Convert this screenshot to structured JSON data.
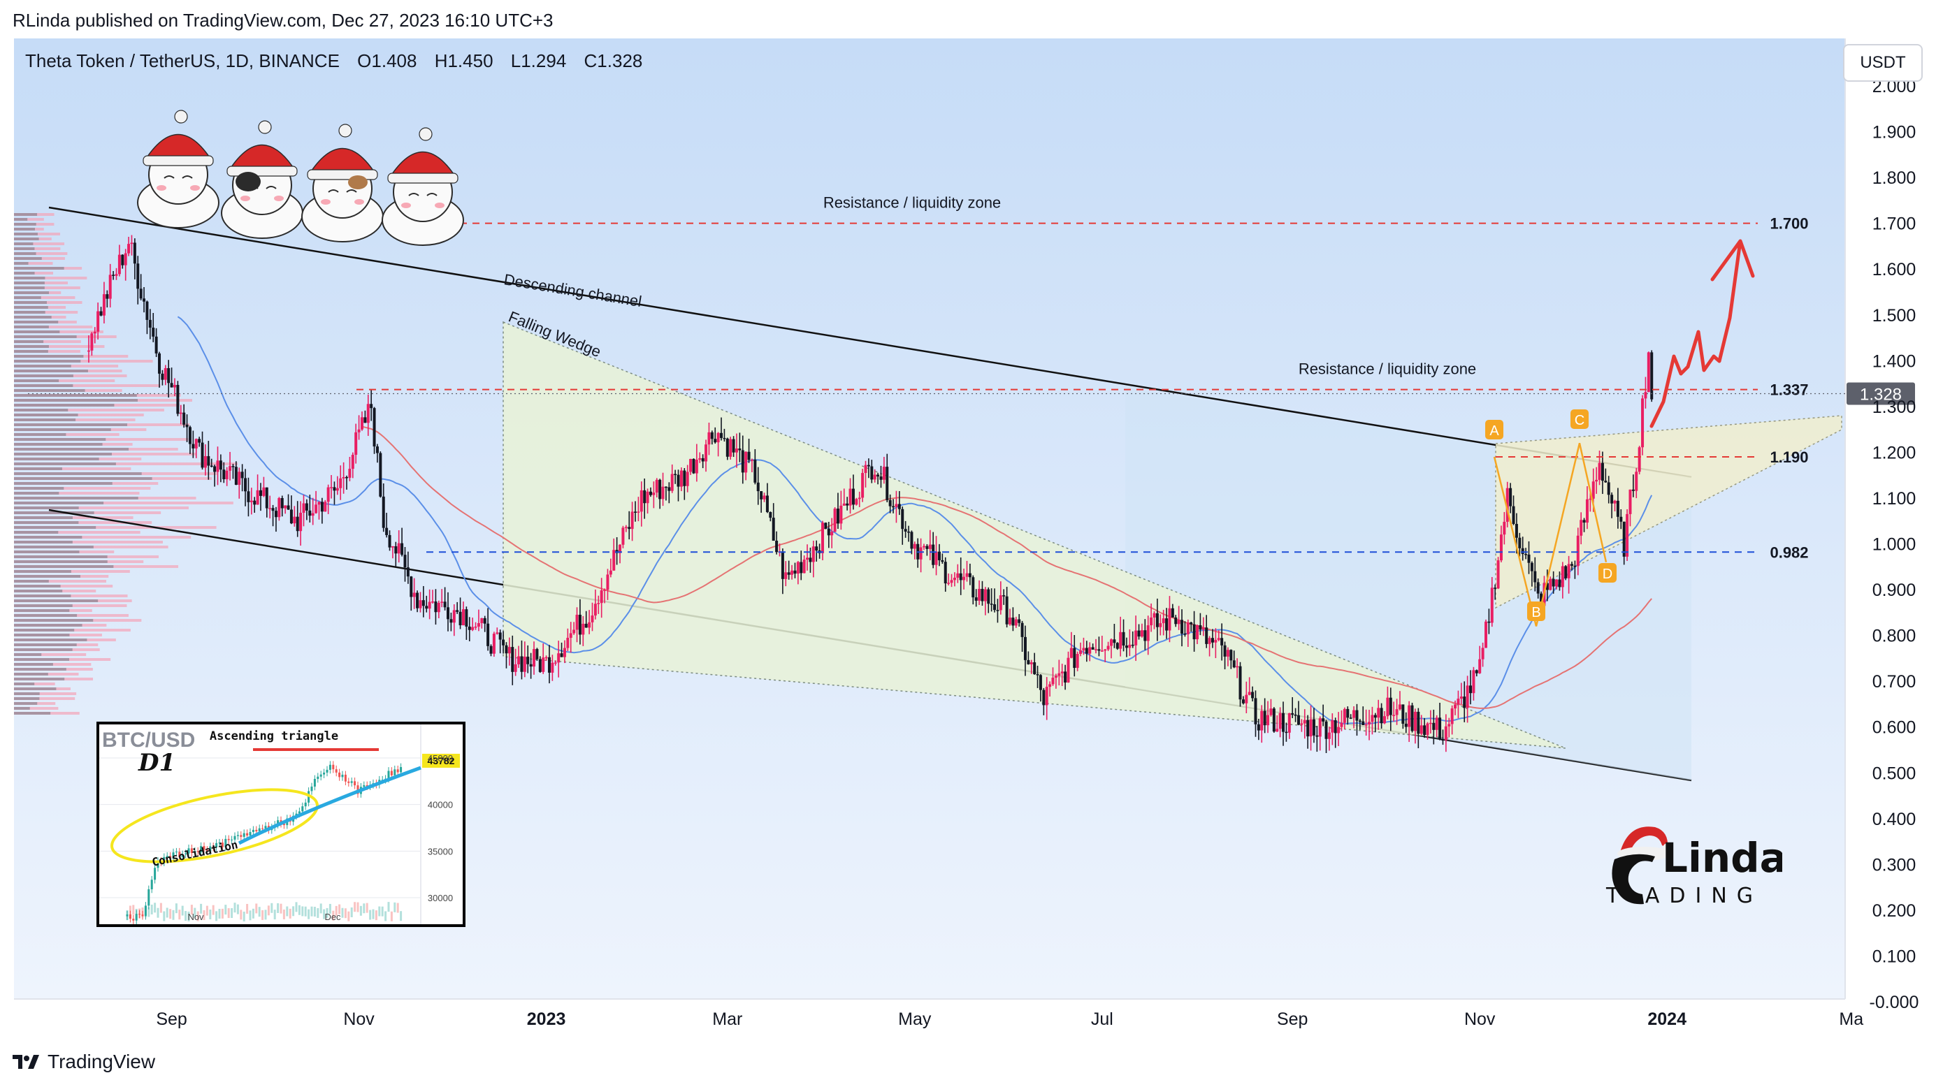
{
  "header": {
    "publisher_line": "RLinda published on TradingView.com, Dec 27, 2023 16:10 UTC+3"
  },
  "symbol": {
    "name": "Theta Token / TetherUS, 1D, BINANCE",
    "open": "O1.408",
    "high": "H1.450",
    "low": "L1.294",
    "close": "C1.328"
  },
  "unit_button": "USDT",
  "footer": {
    "brand": "TradingView"
  },
  "colors": {
    "background_top": "#c6dcf7",
    "background_bottom": "#eef4fd",
    "bull": "#131722",
    "bear": "#e91e63",
    "resistance": "#e53935",
    "support": "#1e4fd8",
    "ma_blue": "#5b8fe8",
    "ma_red": "#e57373",
    "wedge_fill": "#e9f3d8",
    "forecast": "#e53935",
    "pattern_orange": "#f5a623"
  },
  "chart_data": {
    "type": "candlestick",
    "title": "Theta Token / TetherUS, 1D, BINANCE",
    "ylim": [
      -0.05,
      2.05
    ],
    "y_ticks": [
      "2.000",
      "1.900",
      "1.800",
      "1.700",
      "1.600",
      "1.500",
      "1.400",
      "1.300",
      "1.200",
      "1.100",
      "1.000",
      "0.900",
      "0.800",
      "0.700",
      "0.600",
      "0.500",
      "0.400",
      "0.300",
      "0.200",
      "0.100",
      "-0.000"
    ],
    "x_ticks": [
      "Sep",
      "Nov",
      "2023",
      "Mar",
      "May",
      "Jul",
      "Sep",
      "Nov",
      "2024",
      "Ma"
    ],
    "x_ticks_bold": [
      "2023",
      "2024"
    ],
    "price_tag": "1.328",
    "levels": [
      {
        "label": "1.700",
        "value": 1.7,
        "style": "dashed-red",
        "caption": "Resistance / liquidity zone"
      },
      {
        "label": "1.337",
        "value": 1.337,
        "style": "dashed-red",
        "caption": "Resistance / liquidity zone"
      },
      {
        "label": "1.190",
        "value": 1.19,
        "style": "dashed-red",
        "caption": ""
      },
      {
        "label": "0.982",
        "value": 0.982,
        "style": "dashed-blue",
        "caption": ""
      }
    ],
    "annotations": [
      "Descending channel",
      "Falling Wedge"
    ],
    "pattern_points": [
      {
        "label": "A",
        "price": 1.19
      },
      {
        "label": "B",
        "price": 0.82
      },
      {
        "label": "C",
        "price": 1.22
      },
      {
        "label": "D",
        "price": 0.96
      }
    ],
    "price_path": [
      {
        "date": "2022-08-05",
        "close": 1.45
      },
      {
        "date": "2022-08-18",
        "close": 1.66
      },
      {
        "date": "2022-08-28",
        "close": 1.4
      },
      {
        "date": "2022-09-10",
        "close": 1.2
      },
      {
        "date": "2022-09-25",
        "close": 1.12
      },
      {
        "date": "2022-10-12",
        "close": 1.05
      },
      {
        "date": "2022-10-25",
        "close": 1.12
      },
      {
        "date": "2022-11-05",
        "close": 1.3
      },
      {
        "date": "2022-11-09",
        "close": 1.05
      },
      {
        "date": "2022-11-20",
        "close": 0.88
      },
      {
        "date": "2022-12-05",
        "close": 0.85
      },
      {
        "date": "2022-12-20",
        "close": 0.75
      },
      {
        "date": "2023-01-01",
        "close": 0.74
      },
      {
        "date": "2023-01-15",
        "close": 0.85
      },
      {
        "date": "2023-02-01",
        "close": 1.1
      },
      {
        "date": "2023-02-15",
        "close": 1.15
      },
      {
        "date": "2023-02-25",
        "close": 1.25
      },
      {
        "date": "2023-03-10",
        "close": 1.15
      },
      {
        "date": "2023-03-20",
        "close": 0.92
      },
      {
        "date": "2023-04-05",
        "close": 1.05
      },
      {
        "date": "2023-04-18",
        "close": 1.18
      },
      {
        "date": "2023-05-01",
        "close": 1.0
      },
      {
        "date": "2023-05-15",
        "close": 0.92
      },
      {
        "date": "2023-06-01",
        "close": 0.85
      },
      {
        "date": "2023-06-12",
        "close": 0.66
      },
      {
        "date": "2023-06-25",
        "close": 0.78
      },
      {
        "date": "2023-07-10",
        "close": 0.8
      },
      {
        "date": "2023-07-25",
        "close": 0.84
      },
      {
        "date": "2023-08-10",
        "close": 0.76
      },
      {
        "date": "2023-08-20",
        "close": 0.62
      },
      {
        "date": "2023-09-10",
        "close": 0.6
      },
      {
        "date": "2023-10-01",
        "close": 0.64
      },
      {
        "date": "2023-10-20",
        "close": 0.59
      },
      {
        "date": "2023-11-01",
        "close": 0.72
      },
      {
        "date": "2023-11-10",
        "close": 1.1
      },
      {
        "date": "2023-11-20",
        "close": 0.88
      },
      {
        "date": "2023-12-01",
        "close": 0.95
      },
      {
        "date": "2023-12-10",
        "close": 1.18
      },
      {
        "date": "2023-12-18",
        "close": 1.0
      },
      {
        "date": "2023-12-22",
        "close": 1.18
      },
      {
        "date": "2023-12-26",
        "close": 1.42
      },
      {
        "date": "2023-12-27",
        "close": 1.328
      }
    ],
    "inset": {
      "symbol": "BTC/USD",
      "timeframe": "D1",
      "title": "Ascending triangle",
      "annotation": "Consolidation",
      "price_tag": "43782",
      "y_ticks": [
        "45000",
        "40000",
        "35000",
        "30000"
      ],
      "x_ticks": [
        "Nov",
        "Dec"
      ]
    },
    "brand_mark": "RLinda TRADING"
  }
}
